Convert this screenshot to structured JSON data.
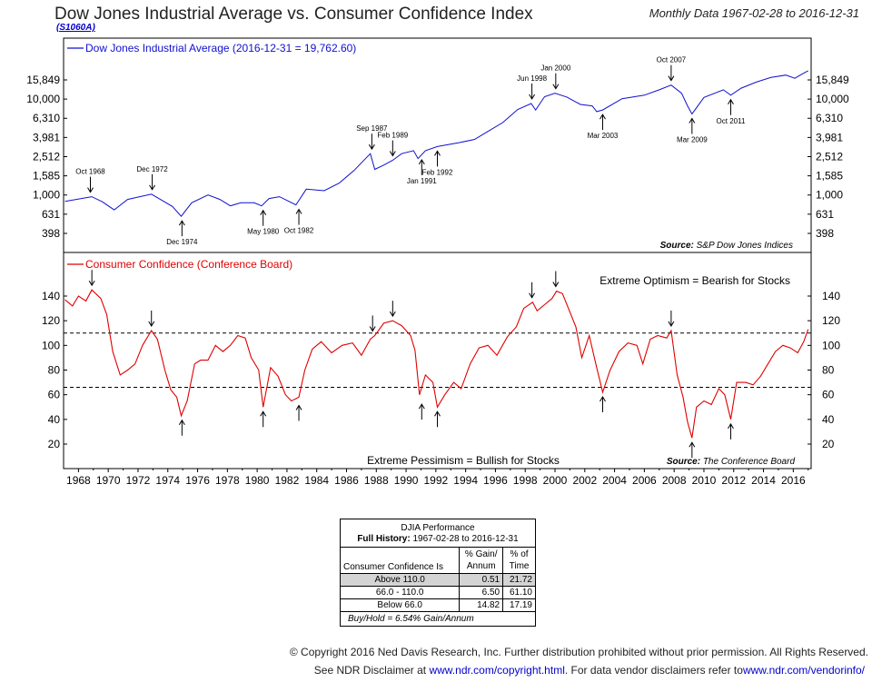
{
  "header": {
    "title": "Dow Jones Industrial Average vs. Consumer Confidence Index",
    "code": "(S1060A)",
    "subtitle": "Monthly Data 1967-02-28 to 2016-12-31"
  },
  "chart_data": [
    {
      "type": "line",
      "legend": "Dow Jones Industrial Average (2016-12-31 = 19,762.60)",
      "scale": "log",
      "y_ticks": [
        398,
        631,
        1000,
        1585,
        2512,
        3981,
        6310,
        10000,
        15849
      ],
      "y_tick_labels": [
        "398",
        "631",
        "1,000",
        "1,585",
        "2,512",
        "3,981",
        "6,310",
        "10,000",
        "15,849"
      ],
      "source_label": "Source:",
      "source": "S&P Dow Jones Indices",
      "color": "#1010d0",
      "series": [
        {
          "name": "Dow Jones Industrial Average",
          "points": [
            [
              1967.1,
              860
            ],
            [
              1968.9,
              960
            ],
            [
              1969.6,
              850
            ],
            [
              1970.4,
              700
            ],
            [
              1971.3,
              900
            ],
            [
              1972.9,
              1020
            ],
            [
              1973.6,
              880
            ],
            [
              1974.3,
              760
            ],
            [
              1974.9,
              600
            ],
            [
              1975.6,
              830
            ],
            [
              1976.7,
              1000
            ],
            [
              1977.5,
              900
            ],
            [
              1978.2,
              770
            ],
            [
              1978.9,
              830
            ],
            [
              1979.8,
              830
            ],
            [
              1980.3,
              770
            ],
            [
              1980.8,
              920
            ],
            [
              1981.5,
              960
            ],
            [
              1982.6,
              790
            ],
            [
              1983.3,
              1150
            ],
            [
              1984.5,
              1110
            ],
            [
              1985.5,
              1330
            ],
            [
              1986.5,
              1800
            ],
            [
              1987.6,
              2700
            ],
            [
              1987.9,
              1850
            ],
            [
              1988.5,
              2050
            ],
            [
              1989.1,
              2300
            ],
            [
              1989.7,
              2700
            ],
            [
              1990.5,
              2900
            ],
            [
              1990.8,
              2400
            ],
            [
              1991.3,
              2900
            ],
            [
              1992.1,
              3200
            ],
            [
              1993.5,
              3500
            ],
            [
              1994.6,
              3800
            ],
            [
              1995.5,
              4600
            ],
            [
              1996.5,
              5700
            ],
            [
              1997.5,
              7800
            ],
            [
              1998.4,
              9000
            ],
            [
              1998.7,
              7700
            ],
            [
              1999.3,
              10600
            ],
            [
              2000.0,
              11500
            ],
            [
              2000.8,
              10500
            ],
            [
              2001.7,
              8800
            ],
            [
              2002.5,
              8500
            ],
            [
              2002.8,
              7400
            ],
            [
              2003.2,
              7700
            ],
            [
              2004.5,
              10100
            ],
            [
              2006.0,
              11000
            ],
            [
              2007.0,
              12500
            ],
            [
              2007.8,
              14000
            ],
            [
              2008.5,
              11500
            ],
            [
              2008.9,
              8500
            ],
            [
              2009.2,
              7000
            ],
            [
              2010.0,
              10400
            ],
            [
              2011.3,
              12500
            ],
            [
              2011.8,
              11000
            ],
            [
              2012.5,
              13000
            ],
            [
              2013.5,
              15000
            ],
            [
              2014.5,
              16800
            ],
            [
              2015.5,
              17800
            ],
            [
              2016.1,
              16500
            ],
            [
              2016.6,
              18300
            ],
            [
              2017.0,
              19762.6
            ]
          ]
        }
      ],
      "annotations": [
        {
          "label": "Oct 1968",
          "x": 1968.8,
          "y": 960,
          "dir": "down"
        },
        {
          "label": "Dec 1972",
          "x": 1972.95,
          "y": 1020,
          "dir": "down"
        },
        {
          "label": "Dec 1974",
          "x": 1974.95,
          "y": 600,
          "dir": "up"
        },
        {
          "label": "May 1980",
          "x": 1980.4,
          "y": 770,
          "dir": "up"
        },
        {
          "label": "Oct 1982",
          "x": 1982.8,
          "y": 790,
          "dir": "up"
        },
        {
          "label": "Sep 1987",
          "x": 1987.7,
          "y": 2700,
          "dir": "down"
        },
        {
          "label": "Feb 1989",
          "x": 1989.1,
          "y": 2300,
          "dir": "down"
        },
        {
          "label": "Feb 1992",
          "x": 1992.1,
          "y": 3200,
          "dir": "up"
        },
        {
          "label": "Jan 1991",
          "x": 1991.05,
          "y": 2600,
          "dir": "up"
        },
        {
          "label": "Jun 1998",
          "x": 1998.45,
          "y": 9000,
          "dir": "down"
        },
        {
          "label": "Jan 2000",
          "x": 2000.05,
          "y": 11500,
          "dir": "down"
        },
        {
          "label": "Mar 2003",
          "x": 2003.2,
          "y": 7700,
          "dir": "up"
        },
        {
          "label": "Oct 2007",
          "x": 2007.8,
          "y": 14000,
          "dir": "down"
        },
        {
          "label": "Mar 2009",
          "x": 2009.2,
          "y": 7000,
          "dir": "up"
        },
        {
          "label": "Oct 2011",
          "x": 2011.8,
          "y": 11000,
          "dir": "up"
        }
      ]
    },
    {
      "type": "line",
      "legend": "Consumer Confidence (Conference Board)",
      "y_ticks": [
        20,
        40,
        60,
        80,
        100,
        120,
        140
      ],
      "thresholds": [
        110,
        66
      ],
      "upper_note": "Extreme Optimism = Bearish for Stocks",
      "lower_note": "Extreme Pessimism = Bullish for Stocks",
      "source_label": "Source:",
      "source": "The Conference Board",
      "color": "#e00000",
      "x_ticks": [
        1968,
        1970,
        1972,
        1974,
        1976,
        1978,
        1980,
        1982,
        1984,
        1986,
        1988,
        1990,
        1992,
        1994,
        1996,
        1998,
        2000,
        2002,
        2004,
        2006,
        2008,
        2010,
        2012,
        2014,
        2016
      ],
      "series": [
        {
          "name": "Consumer Confidence",
          "points": [
            [
              1967.1,
              137
            ],
            [
              1967.6,
              132
            ],
            [
              1968.0,
              140
            ],
            [
              1968.5,
              136
            ],
            [
              1968.9,
              145
            ],
            [
              1969.5,
              138
            ],
            [
              1969.9,
              125
            ],
            [
              1970.3,
              95
            ],
            [
              1970.8,
              76
            ],
            [
              1971.3,
              80
            ],
            [
              1971.8,
              85
            ],
            [
              1972.3,
              100
            ],
            [
              1972.9,
              112
            ],
            [
              1973.3,
              105
            ],
            [
              1973.8,
              80
            ],
            [
              1974.2,
              64
            ],
            [
              1974.6,
              58
            ],
            [
              1974.9,
              43
            ],
            [
              1975.3,
              55
            ],
            [
              1975.8,
              85
            ],
            [
              1976.2,
              88
            ],
            [
              1976.7,
              88
            ],
            [
              1977.2,
              100
            ],
            [
              1977.7,
              95
            ],
            [
              1978.2,
              100
            ],
            [
              1978.7,
              108
            ],
            [
              1979.2,
              106
            ],
            [
              1979.6,
              90
            ],
            [
              1980.1,
              80
            ],
            [
              1980.4,
              50
            ],
            [
              1980.9,
              82
            ],
            [
              1981.4,
              75
            ],
            [
              1981.9,
              60
            ],
            [
              1982.3,
              55
            ],
            [
              1982.8,
              58
            ],
            [
              1983.2,
              80
            ],
            [
              1983.7,
              97
            ],
            [
              1984.3,
              103
            ],
            [
              1985.0,
              94
            ],
            [
              1985.7,
              100
            ],
            [
              1986.4,
              102
            ],
            [
              1987.0,
              92
            ],
            [
              1987.6,
              105
            ],
            [
              1987.9,
              108
            ],
            [
              1988.5,
              118
            ],
            [
              1989.1,
              120
            ],
            [
              1989.7,
              116
            ],
            [
              1990.3,
              108
            ],
            [
              1990.6,
              96
            ],
            [
              1990.9,
              60
            ],
            [
              1991.3,
              76
            ],
            [
              1991.8,
              70
            ],
            [
              1992.1,
              50
            ],
            [
              1992.6,
              60
            ],
            [
              1993.2,
              70
            ],
            [
              1993.7,
              65
            ],
            [
              1994.3,
              85
            ],
            [
              1994.9,
              98
            ],
            [
              1995.5,
              100
            ],
            [
              1996.1,
              92
            ],
            [
              1996.8,
              107
            ],
            [
              1997.4,
              115
            ],
            [
              1997.9,
              130
            ],
            [
              1998.5,
              135
            ],
            [
              1998.8,
              128
            ],
            [
              1999.3,
              133
            ],
            [
              1999.8,
              138
            ],
            [
              2000.1,
              144
            ],
            [
              2000.5,
              142
            ],
            [
              2000.9,
              130
            ],
            [
              2001.4,
              115
            ],
            [
              2001.8,
              90
            ],
            [
              2002.3,
              108
            ],
            [
              2002.8,
              82
            ],
            [
              2003.2,
              62
            ],
            [
              2003.7,
              80
            ],
            [
              2004.3,
              95
            ],
            [
              2004.9,
              102
            ],
            [
              2005.5,
              100
            ],
            [
              2005.9,
              85
            ],
            [
              2006.4,
              105
            ],
            [
              2006.9,
              108
            ],
            [
              2007.5,
              106
            ],
            [
              2007.8,
              112
            ],
            [
              2008.2,
              76
            ],
            [
              2008.6,
              58
            ],
            [
              2008.9,
              38
            ],
            [
              2009.2,
              25
            ],
            [
              2009.5,
              50
            ],
            [
              2010.0,
              55
            ],
            [
              2010.5,
              52
            ],
            [
              2011.0,
              65
            ],
            [
              2011.4,
              60
            ],
            [
              2011.8,
              40
            ],
            [
              2012.2,
              70
            ],
            [
              2012.8,
              70
            ],
            [
              2013.3,
              68
            ],
            [
              2013.8,
              75
            ],
            [
              2014.3,
              85
            ],
            [
              2014.8,
              95
            ],
            [
              2015.3,
              100
            ],
            [
              2015.8,
              98
            ],
            [
              2016.3,
              94
            ],
            [
              2016.7,
              103
            ],
            [
              2017.0,
              113
            ]
          ]
        }
      ],
      "arrows": [
        {
          "x": 1968.9,
          "y": 145,
          "dir": "down"
        },
        {
          "x": 1972.9,
          "y": 112,
          "dir": "down"
        },
        {
          "x": 1974.95,
          "y": 43,
          "dir": "up"
        },
        {
          "x": 1980.4,
          "y": 50,
          "dir": "up"
        },
        {
          "x": 1982.8,
          "y": 55,
          "dir": "up"
        },
        {
          "x": 1987.75,
          "y": 108,
          "dir": "down"
        },
        {
          "x": 1989.1,
          "y": 120,
          "dir": "down"
        },
        {
          "x": 1991.05,
          "y": 56,
          "dir": "up"
        },
        {
          "x": 1992.1,
          "y": 50,
          "dir": "up"
        },
        {
          "x": 1998.45,
          "y": 135,
          "dir": "down"
        },
        {
          "x": 2000.05,
          "y": 144,
          "dir": "down"
        },
        {
          "x": 2003.2,
          "y": 62,
          "dir": "up"
        },
        {
          "x": 2007.8,
          "y": 112,
          "dir": "down"
        },
        {
          "x": 2009.2,
          "y": 25,
          "dir": "up"
        },
        {
          "x": 2011.8,
          "y": 40,
          "dir": "up"
        }
      ]
    }
  ],
  "performance": {
    "title": "DJIA Performance",
    "full_label": "Full History:",
    "full_range": "1967-02-28 to 2016-12-31",
    "col1": "Consumer Confidence Is",
    "col2a": "% Gain/",
    "col2b": "Annum",
    "col3a": "% of",
    "col3b": "Time",
    "rows": [
      {
        "label": "Above 110.0",
        "gain": "0.51",
        "time": "21.72"
      },
      {
        "label": "66.0 - 110.0",
        "gain": "6.50",
        "time": "61.10"
      },
      {
        "label": "Below 66.0",
        "gain": "14.82",
        "time": "17.19"
      }
    ],
    "buyhold": "Buy/Hold = 6.54% Gain/Annum"
  },
  "footer": {
    "copyright": "© Copyright 2016 Ned Davis Research, Inc. Further distribution prohibited without prior permission. All Rights Reserved.",
    "disclaimer_a": "See NDR Disclaimer at ",
    "disclaimer_link1": "www.ndr.com/copyright.html",
    "disclaimer_b": ". For data vendor disclaimers refer to",
    "disclaimer_link2": "www.ndr.com/vendorinfo/"
  }
}
